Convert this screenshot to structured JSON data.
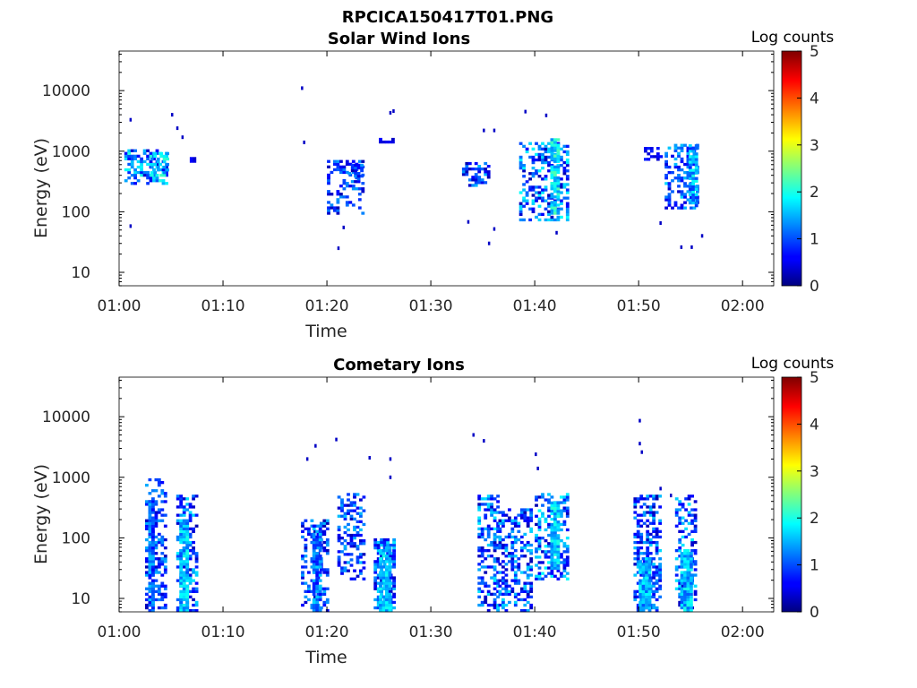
{
  "figure_title": "RPCICA150417T01.PNG",
  "chart_data": [
    {
      "type": "heatmap",
      "title": "Solar Wind Ions",
      "xlabel": "Time",
      "ylabel": "Energy (eV)",
      "x_ticks": [
        "01:00",
        "01:10",
        "01:20",
        "01:30",
        "01:40",
        "01:50",
        "02:00"
      ],
      "xlim_minutes": [
        0,
        63
      ],
      "y_ticks": [
        10,
        100,
        1000,
        10000
      ],
      "y_tick_labels": [
        "10",
        "100",
        "1000",
        "10000"
      ],
      "yscale": "log",
      "ylim": [
        6,
        45000
      ],
      "colorbar": {
        "label": "Log counts",
        "range": [
          0,
          5
        ],
        "ticks": [
          "0",
          "1",
          "2",
          "3",
          "4",
          "5"
        ],
        "colormap": "jet"
      },
      "clusters": [
        {
          "t": [
            0.5,
            4.5
          ],
          "e": [
            280,
            1000
          ],
          "level": [
            0.3,
            2.1
          ],
          "density": 0.55
        },
        {
          "t": [
            3.0,
            4.5
          ],
          "e": [
            380,
            950
          ],
          "level": [
            1.2,
            2.2
          ],
          "density": 0.6
        },
        {
          "t": [
            6.8,
            7.2
          ],
          "e": [
            650,
            750
          ],
          "level": [
            0.3,
            0.7
          ],
          "density": 0.9
        },
        {
          "t": [
            20.0,
            23.5
          ],
          "e": [
            90,
            650
          ],
          "level": [
            0.2,
            1.4
          ],
          "density": 0.32
        },
        {
          "t": [
            22.0,
            23.5
          ],
          "e": [
            300,
            600
          ],
          "level": [
            0.2,
            1.5
          ],
          "density": 0.55
        },
        {
          "t": [
            25.0,
            26.5
          ],
          "e": [
            1350,
            1550
          ],
          "level": [
            0.3,
            0.6
          ],
          "density": 0.6
        },
        {
          "t": [
            33.0,
            35.5
          ],
          "e": [
            260,
            600
          ],
          "level": [
            0.2,
            1.6
          ],
          "density": 0.45
        },
        {
          "t": [
            38.5,
            43.0
          ],
          "e": [
            70,
            1300
          ],
          "level": [
            0.2,
            1.9
          ],
          "density": 0.4
        },
        {
          "t": [
            41.5,
            42.3
          ],
          "e": [
            90,
            1600
          ],
          "level": [
            1.3,
            2.3
          ],
          "density": 0.85
        },
        {
          "t": [
            50.5,
            52.0
          ],
          "e": [
            700,
            1100
          ],
          "level": [
            0.3,
            0.8
          ],
          "density": 0.55
        },
        {
          "t": [
            52.5,
            55.5
          ],
          "e": [
            110,
            1200
          ],
          "level": [
            0.3,
            1.7
          ],
          "density": 0.42
        },
        {
          "t": [
            54.8,
            55.5
          ],
          "e": [
            120,
            1300
          ],
          "level": [
            0.8,
            2.0
          ],
          "density": 0.85
        }
      ],
      "points": [
        {
          "t": 1.0,
          "e": 3300,
          "level": 0.3
        },
        {
          "t": 5.0,
          "e": 4000,
          "level": 0.3
        },
        {
          "t": 5.5,
          "e": 2400,
          "level": 0.3
        },
        {
          "t": 6.0,
          "e": 1700,
          "level": 0.3
        },
        {
          "t": 1.0,
          "e": 58,
          "level": 0.3
        },
        {
          "t": 17.5,
          "e": 11000,
          "level": 0.3
        },
        {
          "t": 17.7,
          "e": 1400,
          "level": 0.3
        },
        {
          "t": 21.5,
          "e": 55,
          "level": 0.3
        },
        {
          "t": 21.0,
          "e": 25,
          "level": 0.3
        },
        {
          "t": 26.0,
          "e": 4300,
          "level": 0.3
        },
        {
          "t": 26.3,
          "e": 4600,
          "level": 0.3
        },
        {
          "t": 35.0,
          "e": 2200,
          "level": 0.3
        },
        {
          "t": 36.0,
          "e": 2200,
          "level": 0.3
        },
        {
          "t": 36.0,
          "e": 52,
          "level": 0.3
        },
        {
          "t": 35.5,
          "e": 30,
          "level": 0.3
        },
        {
          "t": 39.0,
          "e": 4500,
          "level": 0.3
        },
        {
          "t": 41.0,
          "e": 3900,
          "level": 0.3
        },
        {
          "t": 42.0,
          "e": 45,
          "level": 0.3
        },
        {
          "t": 33.5,
          "e": 68,
          "level": 0.3
        },
        {
          "t": 52.0,
          "e": 65,
          "level": 0.3
        },
        {
          "t": 54.0,
          "e": 26,
          "level": 0.3
        },
        {
          "t": 55.0,
          "e": 26,
          "level": 0.3
        },
        {
          "t": 56.0,
          "e": 40,
          "level": 0.3
        }
      ]
    },
    {
      "type": "heatmap",
      "title": "Cometary Ions",
      "xlabel": "Time",
      "ylabel": "Energy (eV)",
      "x_ticks": [
        "01:00",
        "01:10",
        "01:20",
        "01:30",
        "01:40",
        "01:50",
        "02:00"
      ],
      "xlim_minutes": [
        0,
        63
      ],
      "y_ticks": [
        10,
        100,
        1000,
        10000
      ],
      "y_tick_labels": [
        "10",
        "100",
        "1000",
        "10000"
      ],
      "yscale": "log",
      "ylim": [
        6,
        45000
      ],
      "colorbar": {
        "label": "Log counts",
        "range": [
          0,
          5
        ],
        "ticks": [
          "0",
          "1",
          "2",
          "3",
          "4",
          "5"
        ],
        "colormap": "jet"
      },
      "clusters": [
        {
          "t": [
            2.5,
            4.5
          ],
          "e": [
            6,
            900
          ],
          "level": [
            0.2,
            1.5
          ],
          "density": 0.45
        },
        {
          "t": [
            2.8,
            3.3
          ],
          "e": [
            6,
            400
          ],
          "level": [
            0.5,
            1.6
          ],
          "density": 0.85
        },
        {
          "t": [
            5.5,
            7.5
          ],
          "e": [
            6,
            500
          ],
          "level": [
            0.2,
            1.8
          ],
          "density": 0.45
        },
        {
          "t": [
            5.8,
            6.4
          ],
          "e": [
            6,
            200
          ],
          "level": [
            1.0,
            2.0
          ],
          "density": 0.9
        },
        {
          "t": [
            17.5,
            20.0
          ],
          "e": [
            6,
            190
          ],
          "level": [
            0.2,
            1.5
          ],
          "density": 0.35
        },
        {
          "t": [
            18.6,
            19.4
          ],
          "e": [
            6,
            150
          ],
          "level": [
            0.6,
            1.7
          ],
          "density": 0.8
        },
        {
          "t": [
            21.0,
            23.5
          ],
          "e": [
            20,
            500
          ],
          "level": [
            0.2,
            1.6
          ],
          "density": 0.35
        },
        {
          "t": [
            24.5,
            26.5
          ],
          "e": [
            6,
            95
          ],
          "level": [
            0.3,
            1.8
          ],
          "density": 0.65
        },
        {
          "t": [
            25.0,
            26.0
          ],
          "e": [
            6,
            70
          ],
          "level": [
            1.2,
            2.0
          ],
          "density": 0.85
        },
        {
          "t": [
            34.5,
            36.5
          ],
          "e": [
            6,
            500
          ],
          "level": [
            0.2,
            1.8
          ],
          "density": 0.45
        },
        {
          "t": [
            36.5,
            39.5
          ],
          "e": [
            6,
            300
          ],
          "level": [
            0.2,
            1.7
          ],
          "density": 0.45
        },
        {
          "t": [
            40.0,
            43.0
          ],
          "e": [
            20,
            500
          ],
          "level": [
            0.2,
            1.9
          ],
          "density": 0.4
        },
        {
          "t": [
            41.5,
            42.3
          ],
          "e": [
            30,
            400
          ],
          "level": [
            1.2,
            2.1
          ],
          "density": 0.85
        },
        {
          "t": [
            49.5,
            52.0
          ],
          "e": [
            6,
            500
          ],
          "level": [
            0.2,
            1.7
          ],
          "density": 0.5
        },
        {
          "t": [
            50.0,
            51.0
          ],
          "e": [
            6,
            45
          ],
          "level": [
            1.0,
            2.0
          ],
          "density": 0.9
        },
        {
          "t": [
            53.5,
            55.5
          ],
          "e": [
            6,
            500
          ],
          "level": [
            0.2,
            1.8
          ],
          "density": 0.45
        },
        {
          "t": [
            54.0,
            55.0
          ],
          "e": [
            6,
            60
          ],
          "level": [
            1.0,
            2.0
          ],
          "density": 0.9
        }
      ],
      "points": [
        {
          "t": 18.0,
          "e": 2000,
          "level": 0.3
        },
        {
          "t": 18.8,
          "e": 3300,
          "level": 0.3
        },
        {
          "t": 20.8,
          "e": 4200,
          "level": 0.3
        },
        {
          "t": 24.0,
          "e": 2100,
          "level": 0.3
        },
        {
          "t": 26.0,
          "e": 1000,
          "level": 0.3
        },
        {
          "t": 34.0,
          "e": 5000,
          "level": 0.3
        },
        {
          "t": 35.0,
          "e": 4000,
          "level": 0.3
        },
        {
          "t": 40.0,
          "e": 2400,
          "level": 0.3
        },
        {
          "t": 40.2,
          "e": 1400,
          "level": 0.3
        },
        {
          "t": 50.0,
          "e": 8600,
          "level": 0.3
        },
        {
          "t": 50.0,
          "e": 3600,
          "level": 0.3
        },
        {
          "t": 50.2,
          "e": 2600,
          "level": 0.3
        },
        {
          "t": 52.0,
          "e": 650,
          "level": 0.3
        },
        {
          "t": 53.0,
          "e": 500,
          "level": 0.3
        },
        {
          "t": 26.0,
          "e": 2000,
          "level": 0.3
        }
      ]
    }
  ]
}
